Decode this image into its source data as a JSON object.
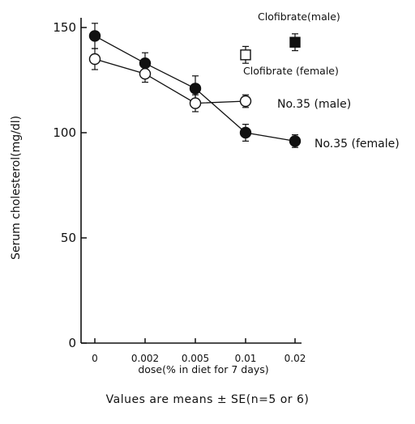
{
  "chart_data": {
    "type": "line",
    "title": "",
    "xlabel": "dose(% in diet for 7 days)",
    "ylabel": "Serum cholesterol(mg/dl)",
    "x_categories": [
      "0",
      "0.002",
      "0.005",
      "0.01",
      "0.02"
    ],
    "y_ticks": [
      0,
      50,
      100,
      150
    ],
    "ylim": [
      0,
      155
    ],
    "grid": false,
    "series": [
      {
        "name": "No.35 (female)",
        "marker": "filled-circle",
        "values": [
          146,
          133,
          121,
          100,
          96
        ],
        "errors": [
          6,
          5,
          6,
          4,
          3
        ]
      },
      {
        "name": "No.35 (male)",
        "marker": "open-circle",
        "values": [
          135,
          128,
          114,
          115
        ],
        "errors": [
          5,
          4,
          4,
          3
        ]
      }
    ],
    "reference_points": [
      {
        "name": "Clofibrate (female)",
        "marker": "filled-square",
        "x_position": "0.02",
        "value": 143,
        "error": 4
      },
      {
        "name": "Clofibrate(male)",
        "marker": "open-square",
        "x_position": "0.01",
        "value": 137,
        "error": 4
      }
    ],
    "annotations": [
      "No.35 (male)",
      "No.35 (female)",
      "Clofibrate (female)",
      "Clofibrate(male)"
    ]
  },
  "footnote": "Values are means ± SE(n=5 or 6)"
}
